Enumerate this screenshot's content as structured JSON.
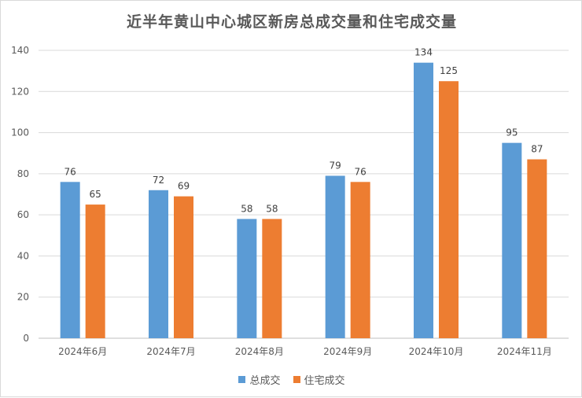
{
  "chart_data": {
    "type": "bar",
    "title": "近半年黄山中心城区新房总成交量和住宅成交量",
    "categories": [
      "2024年6月",
      "2024年7月",
      "2024年8月",
      "2024年9月",
      "2024年10月",
      "2024年11月"
    ],
    "series": [
      {
        "name": "总成交",
        "color": "#5b9bd5",
        "values": [
          76,
          72,
          58,
          79,
          134,
          95
        ]
      },
      {
        "name": "住宅成交",
        "color": "#ed7d31",
        "values": [
          65,
          69,
          58,
          76,
          125,
          87
        ]
      }
    ],
    "ylim": [
      0,
      140
    ],
    "yticks": [
      "0",
      "20",
      "40",
      "60",
      "80",
      "100",
      "120",
      "140"
    ],
    "grid": true,
    "legend_position": "bottom"
  }
}
